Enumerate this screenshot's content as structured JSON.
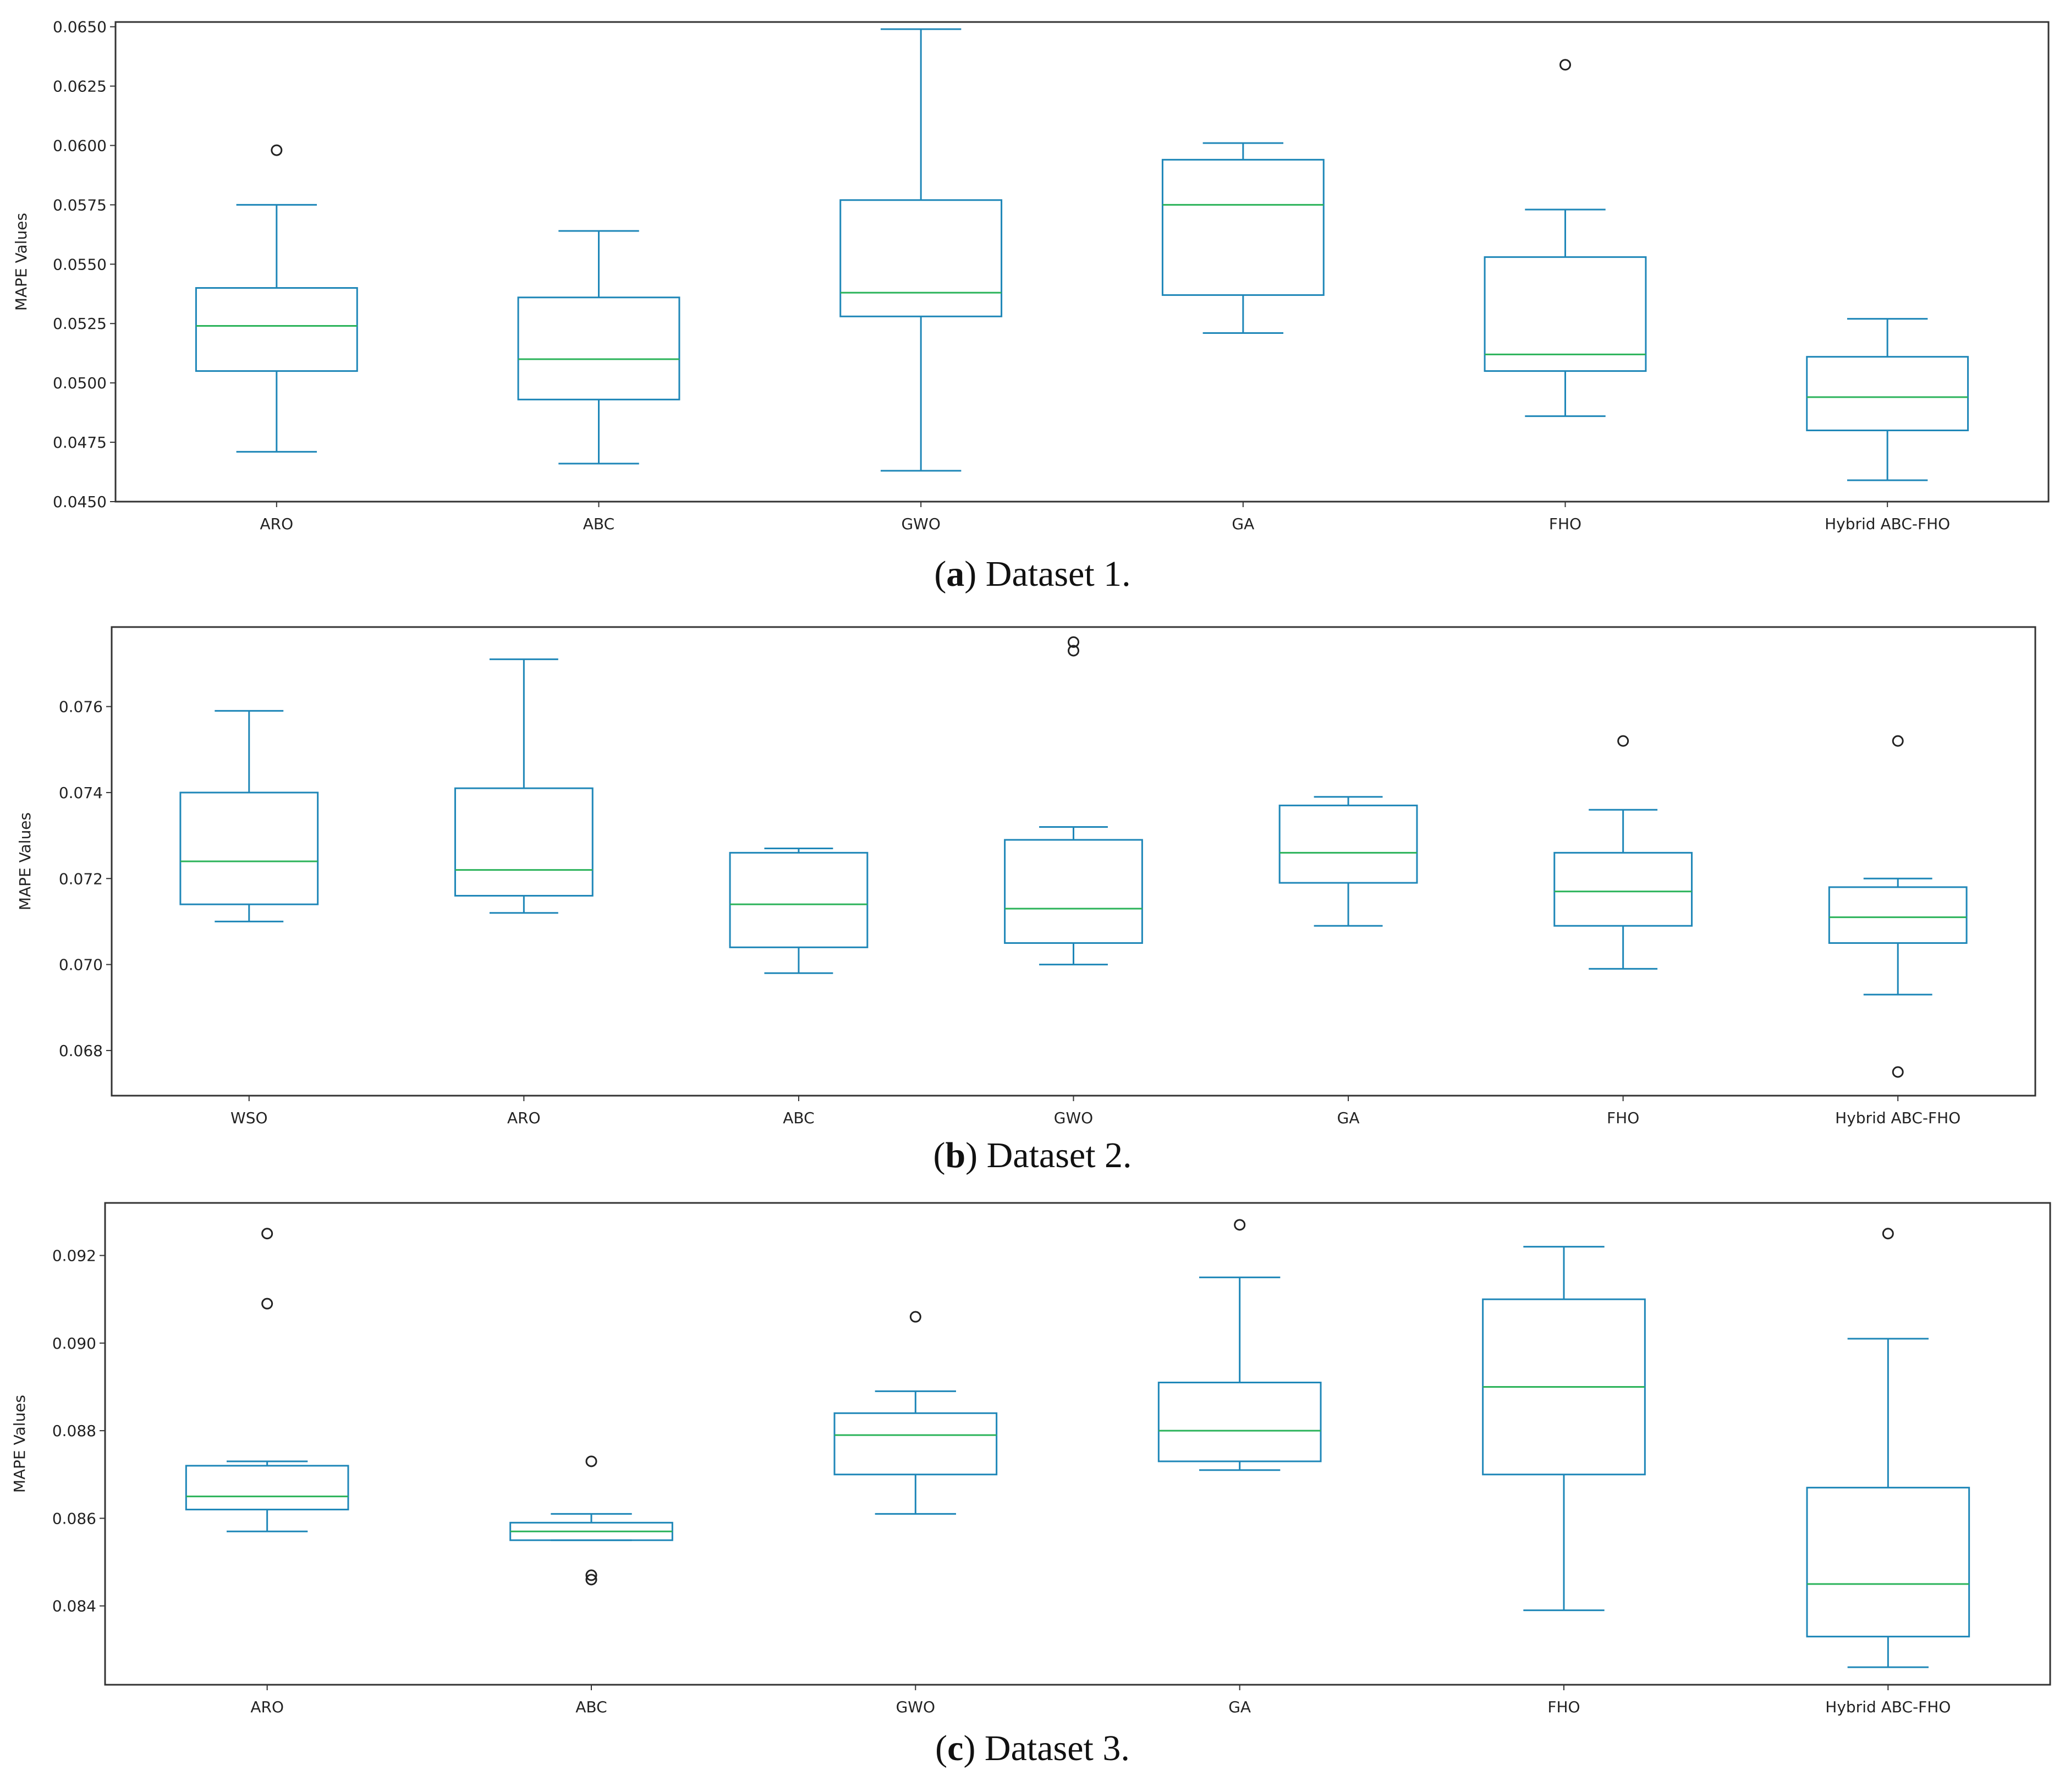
{
  "chart_data": [
    {
      "type": "boxplot",
      "caption_letter": "a",
      "caption_text": "Dataset 1.",
      "ylabel": "MAPE Values",
      "xlabel": "",
      "ylim": [
        0.045,
        0.0652
      ],
      "yticks": [
        "0.0450",
        "0.0475",
        "0.0500",
        "0.0525",
        "0.0550",
        "0.0575",
        "0.0600",
        "0.0625",
        "0.0650"
      ],
      "ytick_values": [
        0.045,
        0.0475,
        0.05,
        0.0525,
        0.055,
        0.0575,
        0.06,
        0.0625,
        0.065
      ],
      "categories": [
        "ARO",
        "ABC",
        "GWO",
        "GA",
        "FHO",
        "Hybrid ABC-FHO"
      ],
      "boxes": [
        {
          "name": "ARO",
          "whislo": 0.0471,
          "q1": 0.0505,
          "med": 0.0524,
          "q3": 0.054,
          "whishi": 0.0575,
          "fliers": [
            0.0598
          ]
        },
        {
          "name": "ABC",
          "whislo": 0.0466,
          "q1": 0.0493,
          "med": 0.051,
          "q3": 0.0536,
          "whishi": 0.0564,
          "fliers": []
        },
        {
          "name": "GWO",
          "whislo": 0.0463,
          "q1": 0.0528,
          "med": 0.0538,
          "q3": 0.0577,
          "whishi": 0.0649,
          "fliers": []
        },
        {
          "name": "GA",
          "whislo": 0.0521,
          "q1": 0.0537,
          "med": 0.0575,
          "q3": 0.0594,
          "whishi": 0.0601,
          "fliers": []
        },
        {
          "name": "FHO",
          "whislo": 0.0486,
          "q1": 0.0505,
          "med": 0.0512,
          "q3": 0.0553,
          "whishi": 0.0573,
          "fliers": [
            0.0634
          ]
        },
        {
          "name": "Hybrid ABC-FHO",
          "whislo": 0.0459,
          "q1": 0.048,
          "med": 0.0494,
          "q3": 0.0511,
          "whishi": 0.0527,
          "fliers": []
        }
      ]
    },
    {
      "type": "boxplot",
      "caption_letter": "b",
      "caption_text": "Dataset 2.",
      "ylabel": "MAPE Values",
      "xlabel": "",
      "ylim": [
        0.06695,
        0.07785
      ],
      "yticks": [
        "0.068",
        "0.070",
        "0.072",
        "0.074",
        "0.076"
      ],
      "ytick_values": [
        0.068,
        0.07,
        0.072,
        0.074,
        0.076
      ],
      "categories": [
        "WSO",
        "ARO",
        "ABC",
        "GWO",
        "GA",
        "FHO",
        "Hybrid ABC-FHO"
      ],
      "boxes": [
        {
          "name": "WSO",
          "whislo": 0.071,
          "q1": 0.0714,
          "med": 0.0724,
          "q3": 0.074,
          "whishi": 0.0759,
          "fliers": []
        },
        {
          "name": "ARO",
          "whislo": 0.0712,
          "q1": 0.0716,
          "med": 0.0722,
          "q3": 0.0741,
          "whishi": 0.0771,
          "fliers": []
        },
        {
          "name": "ABC",
          "whislo": 0.0698,
          "q1": 0.0704,
          "med": 0.0714,
          "q3": 0.0726,
          "whishi": 0.0727,
          "fliers": []
        },
        {
          "name": "GWO",
          "whislo": 0.07,
          "q1": 0.0705,
          "med": 0.0713,
          "q3": 0.0729,
          "whishi": 0.0732,
          "fliers": [
            0.0775,
            0.0773
          ]
        },
        {
          "name": "GA",
          "whislo": 0.0709,
          "q1": 0.0719,
          "med": 0.0726,
          "q3": 0.0737,
          "whishi": 0.0739,
          "fliers": []
        },
        {
          "name": "FHO",
          "whislo": 0.0699,
          "q1": 0.0709,
          "med": 0.0717,
          "q3": 0.0726,
          "whishi": 0.0736,
          "fliers": [
            0.0752
          ]
        },
        {
          "name": "Hybrid ABC-FHO",
          "whislo": 0.0693,
          "q1": 0.0705,
          "med": 0.0711,
          "q3": 0.0718,
          "whishi": 0.072,
          "fliers": [
            0.0752,
            0.0675
          ]
        }
      ]
    },
    {
      "type": "boxplot",
      "caption_letter": "c",
      "caption_text": "Dataset 3.",
      "ylabel": "MAPE Values",
      "xlabel": "",
      "ylim": [
        0.0822,
        0.0932
      ],
      "yticks": [
        "0.084",
        "0.086",
        "0.088",
        "0.090",
        "0.092"
      ],
      "ytick_values": [
        0.084,
        0.086,
        0.088,
        0.09,
        0.092
      ],
      "categories": [
        "ARO",
        "ABC",
        "GWO",
        "GA",
        "FHO",
        "Hybrid ABC-FHO"
      ],
      "boxes": [
        {
          "name": "ARO",
          "whislo": 0.0857,
          "q1": 0.0862,
          "med": 0.0865,
          "q3": 0.0872,
          "whishi": 0.0873,
          "fliers": [
            0.0925,
            0.0909
          ]
        },
        {
          "name": "ABC",
          "whislo": 0.0855,
          "q1": 0.0855,
          "med": 0.0857,
          "q3": 0.0859,
          "whishi": 0.0861,
          "fliers": [
            0.0873,
            0.0847,
            0.0846
          ]
        },
        {
          "name": "GWO",
          "whislo": 0.0861,
          "q1": 0.087,
          "med": 0.0879,
          "q3": 0.0884,
          "whishi": 0.0889,
          "fliers": [
            0.0906
          ]
        },
        {
          "name": "GA",
          "whislo": 0.0871,
          "q1": 0.0873,
          "med": 0.088,
          "q3": 0.0891,
          "whishi": 0.0915,
          "fliers": [
            0.0927
          ]
        },
        {
          "name": "FHO",
          "whislo": 0.0839,
          "q1": 0.087,
          "med": 0.089,
          "q3": 0.091,
          "whishi": 0.0922,
          "fliers": []
        },
        {
          "name": "Hybrid ABC-FHO",
          "whislo": 0.0826,
          "q1": 0.0833,
          "med": 0.0845,
          "q3": 0.0867,
          "whishi": 0.0901,
          "fliers": [
            0.0925
          ]
        }
      ]
    }
  ],
  "colors": {
    "box": "#1f87b8",
    "median": "#2bb35a",
    "flier": "#222222",
    "frame": "#333333"
  }
}
